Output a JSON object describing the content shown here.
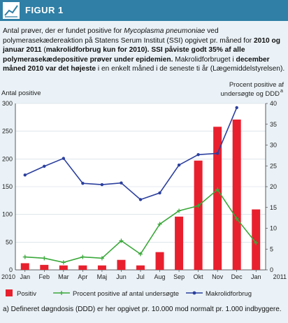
{
  "figure": {
    "label": "FIGUR 1",
    "header_color": "#2f7fa6",
    "panel_color": "#eaf2f7"
  },
  "caption": {
    "p1": "Antal prøver, der er fundet positive for ",
    "p2": "Mycoplasma pneumoniae",
    "p3": " ved polymerasekædereaktion på Statens Serum Institut (SSI) opgivet pr. måned for ",
    "p4": "2010 og januar 2011",
    "p5": " (",
    "p6": "makrolidforbrug kun for 2010). SSI påviste godt 35% af alle polymerasekædepositive prøver under epidemien.",
    "p7": " Makrolidforbruget i ",
    "p8": "december måned 2010 var det højeste",
    "p9": " i en enkelt måned i de seneste ti år (Lægemiddelstyrelsen)."
  },
  "footnote": "a) Defineret døgndosis (DDD) er her opgivet pr. 10.000 mod normalt pr. 1.000 indbyggere.",
  "chart_data": {
    "type": "bar",
    "left_axis_title": "Antal positive",
    "right_axis_title_line1": "Procent positive af",
    "right_axis_title_line2": "undersøgte og DDD",
    "right_axis_title_sup": "a",
    "ylim_left": [
      0,
      300
    ],
    "ylim_right": [
      0,
      40
    ],
    "left_ticks": [
      "0",
      "50",
      "100",
      "150",
      "200",
      "250",
      "300"
    ],
    "right_ticks": [
      "0",
      "5",
      "10",
      "15",
      "20",
      "25",
      "30",
      "35",
      "40"
    ],
    "categories": [
      "Jan",
      "Feb",
      "Mar",
      "Apr",
      "Maj",
      "Jun",
      "Jul",
      "Aug",
      "Sep",
      "Okt",
      "Nov",
      "Dec",
      "Jan"
    ],
    "year_start": "2010",
    "year_end": "2011",
    "grid": true,
    "series": [
      {
        "name": "Positiv",
        "kind": "bar",
        "axis": "left",
        "color": "#e8202e",
        "values": [
          12,
          9,
          8,
          8,
          8,
          18,
          8,
          32,
          96,
          197,
          258,
          271,
          109
        ]
      },
      {
        "name": "Procent positive af antal undersøgte",
        "kind": "line",
        "axis": "right",
        "color": "#3aa83a",
        "values": [
          3.1,
          2.8,
          1.8,
          3.1,
          2.8,
          7.0,
          3.8,
          11.0,
          14.2,
          15.4,
          19.3,
          12.3,
          6.5
        ]
      },
      {
        "name": "Makrolidforbrug",
        "kind": "line",
        "axis": "right",
        "color": "#2b3f9e",
        "values": [
          22.8,
          24.9,
          26.8,
          20.8,
          20.5,
          20.9,
          16.9,
          18.5,
          25.2,
          27.7,
          28.0,
          39.0,
          null
        ]
      }
    ]
  }
}
